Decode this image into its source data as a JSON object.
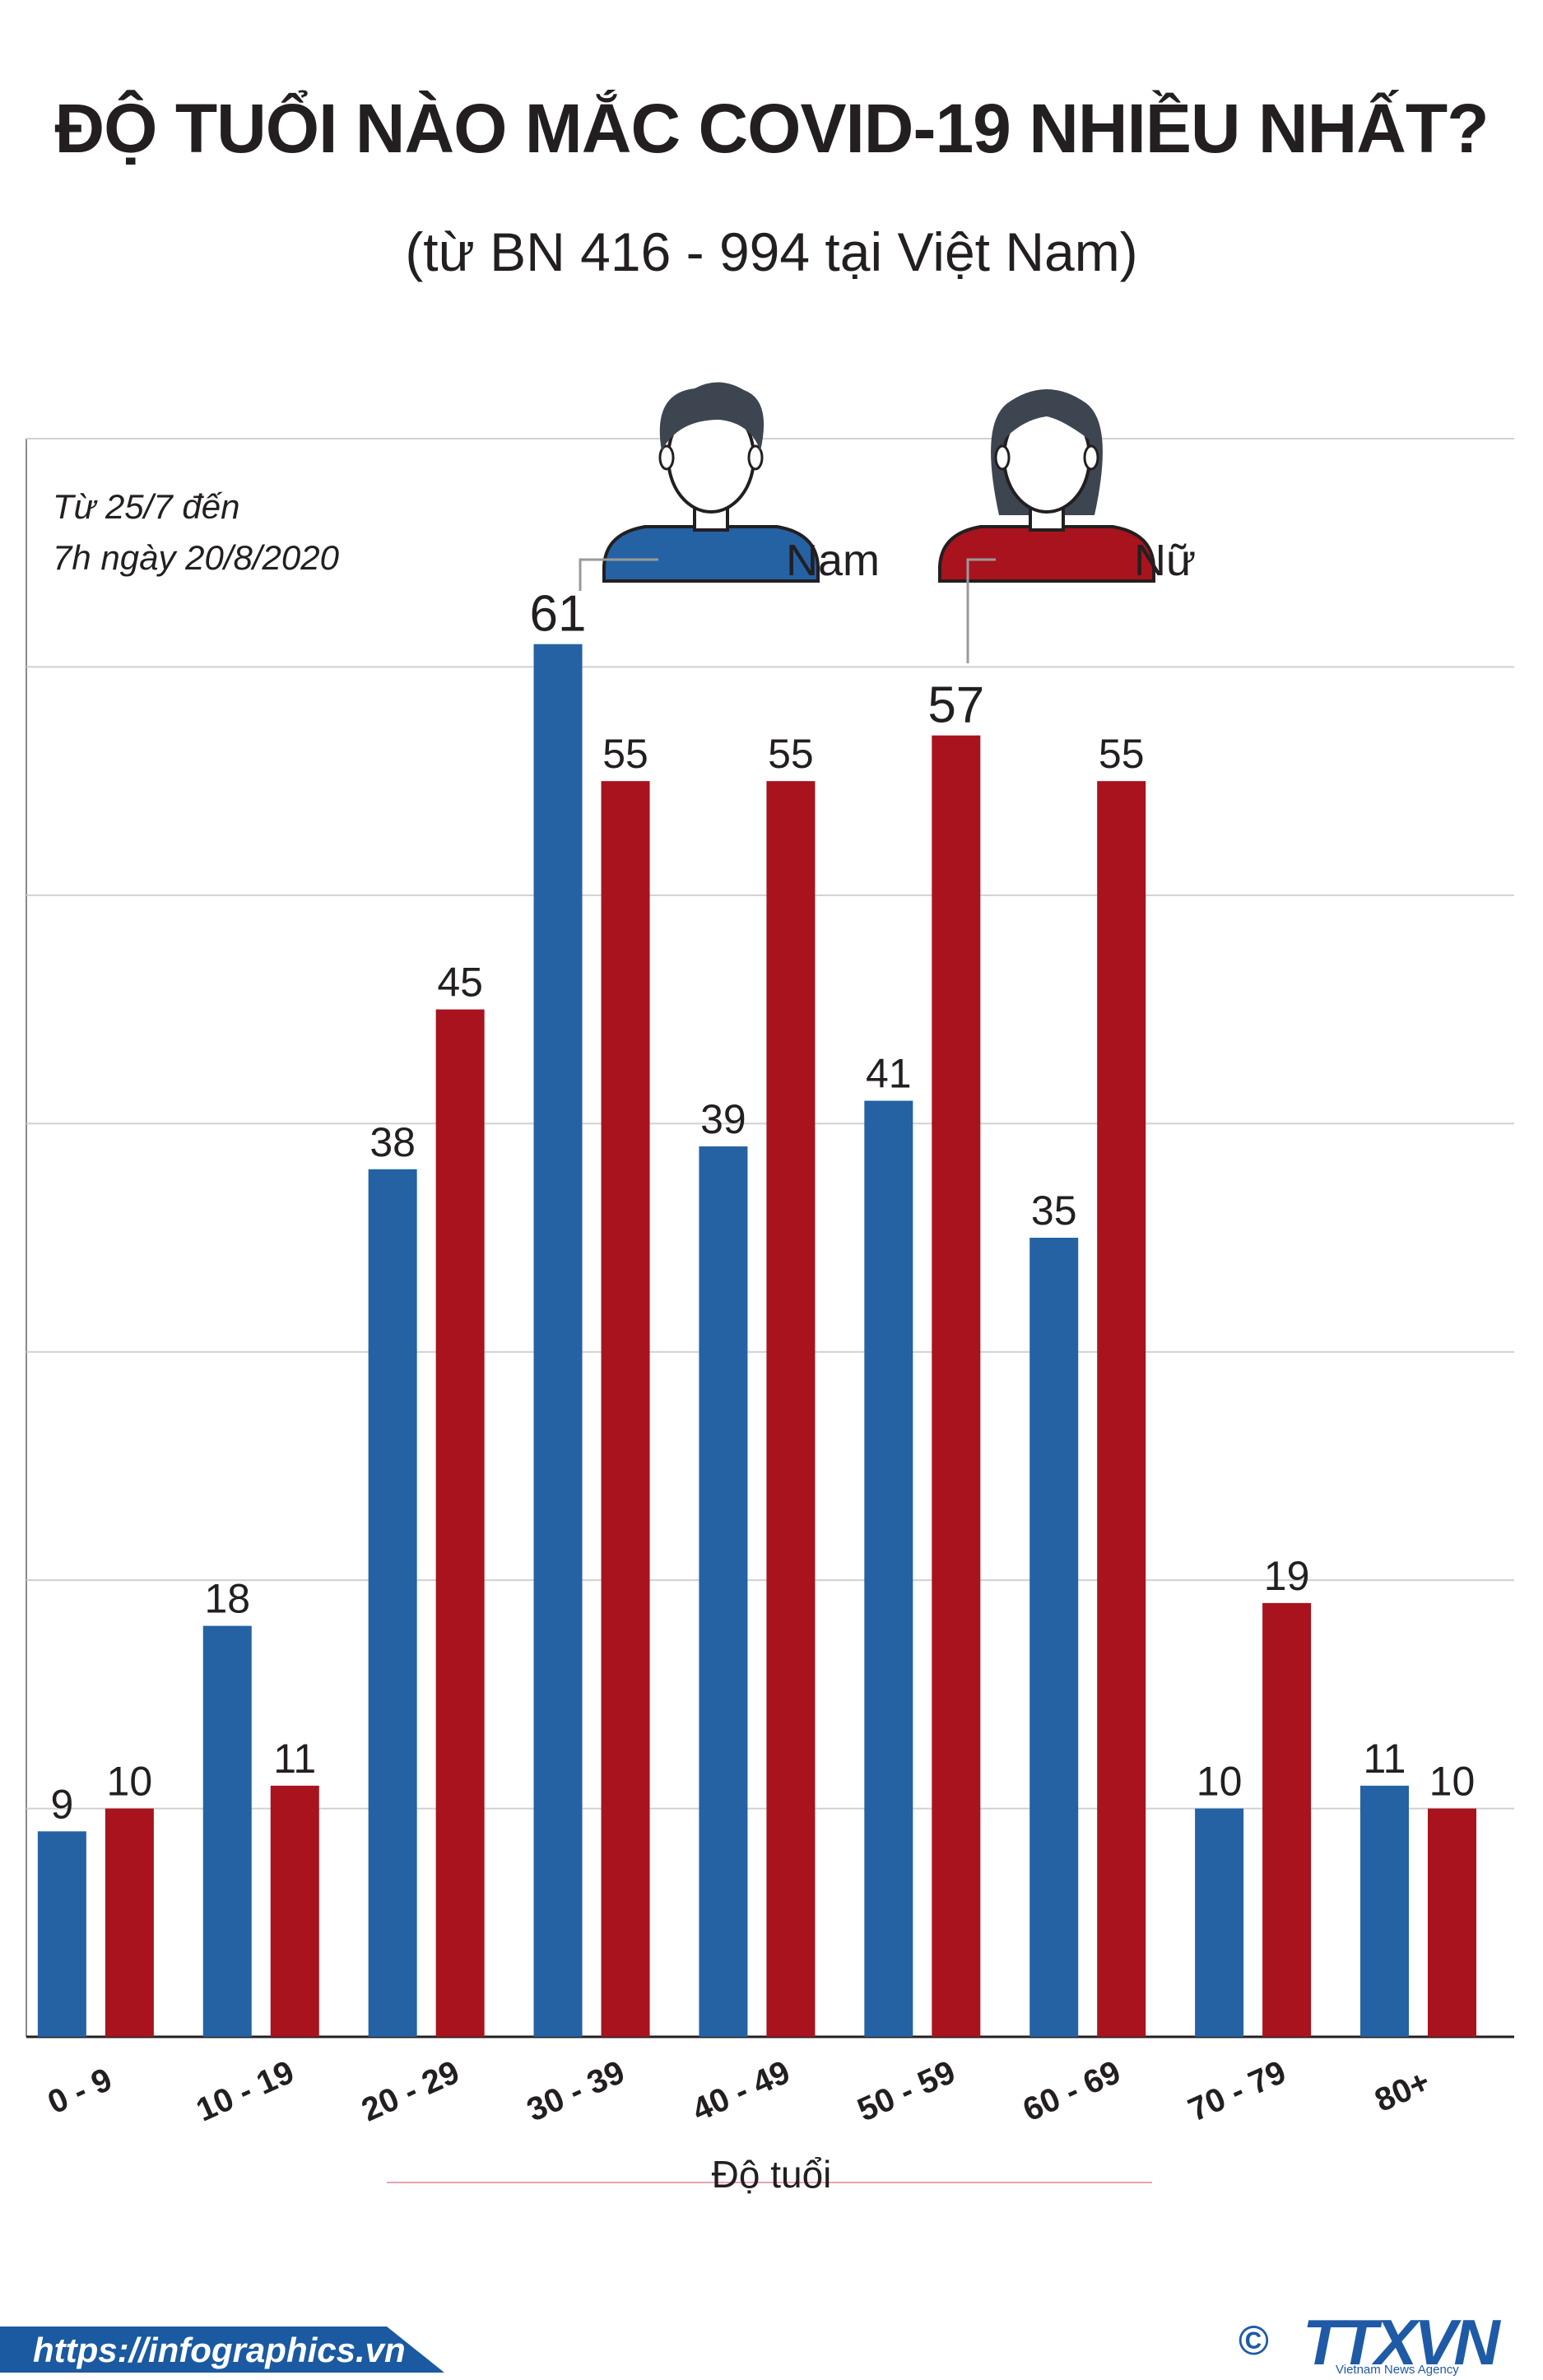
{
  "title": "ĐỘ TUỔI NÀO MẮC COVID-19 NHIỀU NHẤT?",
  "subtitle": "(từ BN 416 - 994 tại Việt Nam)",
  "note_line1": "Từ 25/7 đến",
  "note_line2": "7h ngày 20/8/2020",
  "footer_url": "https://infographics.vn",
  "logo": {
    "copyright": "©",
    "text": "TTXVN",
    "tagline": "Vietnam News Agency"
  },
  "colors": {
    "male": "#2462a4",
    "female": "#a8131e",
    "grid": "#d0d0d0",
    "footer": "#1b5aa0"
  },
  "chart_data": {
    "type": "bar",
    "xlabel": "Độ tuổi",
    "ylabel": "",
    "ylim": [
      0,
      70
    ],
    "grid": true,
    "legend_placement": "top-center",
    "categories": [
      "0 - 9",
      "10 - 19",
      "20 - 29",
      "30 - 39",
      "40 - 49",
      "50 - 59",
      "60 - 69",
      "70 - 79",
      "80+"
    ],
    "series": [
      {
        "name": "Nam",
        "color": "#2462a4",
        "values": [
          9,
          18,
          38,
          61,
          39,
          41,
          35,
          10,
          11
        ]
      },
      {
        "name": "Nữ",
        "color": "#a8131e",
        "values": [
          10,
          11,
          45,
          55,
          55,
          57,
          55,
          19,
          10
        ]
      }
    ]
  }
}
